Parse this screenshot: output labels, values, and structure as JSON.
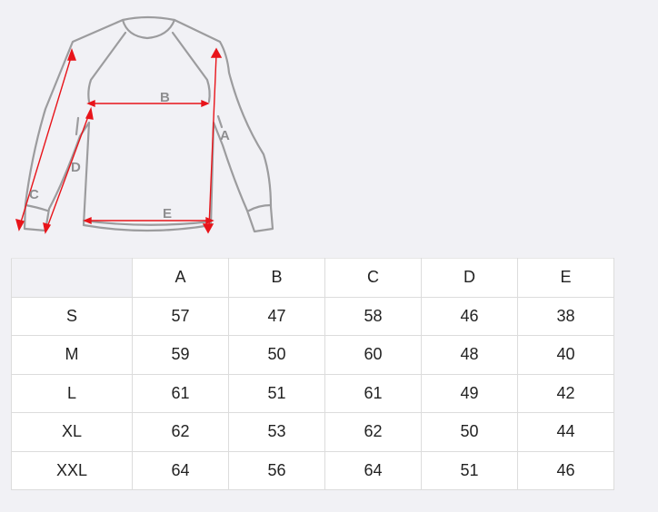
{
  "diagram": {
    "labels": {
      "A": "A",
      "B": "B",
      "C": "C",
      "D": "D",
      "E": "E"
    },
    "arrow_color": "#e8141a",
    "outline_color": "#9a9a9c"
  },
  "table": {
    "headers": [
      "",
      "A",
      "B",
      "C",
      "D",
      "E"
    ],
    "rows": [
      {
        "size": "S",
        "values": [
          "57",
          "47",
          "58",
          "46",
          "38"
        ]
      },
      {
        "size": "M",
        "values": [
          "59",
          "50",
          "60",
          "48",
          "40"
        ]
      },
      {
        "size": "L",
        "values": [
          "61",
          "51",
          "61",
          "49",
          "42"
        ]
      },
      {
        "size": "XL",
        "values": [
          "62",
          "53",
          "62",
          "50",
          "44"
        ]
      },
      {
        "size": "XXL",
        "values": [
          "64",
          "56",
          "64",
          "51",
          "46"
        ]
      }
    ]
  }
}
